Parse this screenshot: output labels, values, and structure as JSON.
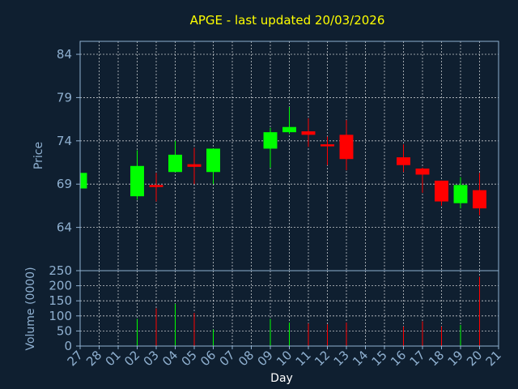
{
  "chart_data": {
    "type": "candlestick",
    "title": "APGE - last updated 20/03/2026",
    "xlabel": "Day",
    "price_panel": {
      "ylabel": "Price",
      "ylim": [
        59,
        85.5
      ],
      "yticks": [
        64,
        69,
        74,
        79,
        84
      ]
    },
    "volume_panel": {
      "ylabel": "Volume (0000)",
      "ylim": [
        0,
        250
      ],
      "yticks": [
        0,
        50,
        100,
        150,
        200,
        250
      ]
    },
    "categories": [
      "27",
      "28",
      "01",
      "02",
      "03",
      "04",
      "05",
      "06",
      "07",
      "08",
      "09",
      "10",
      "11",
      "12",
      "13",
      "14",
      "15",
      "16",
      "17",
      "18",
      "19",
      "20",
      "21"
    ],
    "candles": [
      {
        "day": "27",
        "open": 68.5,
        "close": 70.3,
        "high": 70.3,
        "low": 68.5,
        "volume": 0
      },
      {
        "day": "02",
        "open": 67.6,
        "close": 71.1,
        "high": 72.9,
        "low": 67.2,
        "volume": 90
      },
      {
        "day": "03",
        "open": 68.9,
        "close": 68.7,
        "high": 70.3,
        "low": 67.0,
        "volume": 125
      },
      {
        "day": "04",
        "open": 70.4,
        "close": 72.4,
        "high": 74.0,
        "low": 70.4,
        "volume": 140
      },
      {
        "day": "05",
        "open": 71.3,
        "close": 71.0,
        "high": 73.2,
        "low": 69.0,
        "volume": 110
      },
      {
        "day": "06",
        "open": 70.4,
        "close": 73.1,
        "high": 73.1,
        "low": 69.0,
        "volume": 55
      },
      {
        "day": "09",
        "open": 73.1,
        "close": 75.0,
        "high": 75.5,
        "low": 70.9,
        "volume": 90
      },
      {
        "day": "10",
        "open": 75.0,
        "close": 75.6,
        "high": 77.9,
        "low": 74.8,
        "volume": 78
      },
      {
        "day": "11",
        "open": 75.1,
        "close": 74.7,
        "high": 76.6,
        "low": 73.3,
        "volume": 75
      },
      {
        "day": "12",
        "open": 73.6,
        "close": 73.4,
        "high": 74.5,
        "low": 71.2,
        "volume": 72
      },
      {
        "day": "13",
        "open": 74.7,
        "close": 71.9,
        "high": 76.4,
        "low": 70.6,
        "volume": 78
      },
      {
        "day": "16",
        "open": 72.1,
        "close": 71.2,
        "high": 73.6,
        "low": 70.4,
        "volume": 65
      },
      {
        "day": "17",
        "open": 70.8,
        "close": 70.1,
        "high": 70.9,
        "low": 68.0,
        "volume": 82
      },
      {
        "day": "18",
        "open": 69.4,
        "close": 67.0,
        "high": 69.4,
        "low": 66.5,
        "volume": 65
      },
      {
        "day": "19",
        "open": 66.8,
        "close": 68.9,
        "high": 69.8,
        "low": 66.2,
        "volume": 70
      },
      {
        "day": "20",
        "open": 68.3,
        "close": 66.2,
        "high": 70.3,
        "low": 65.4,
        "volume": 230
      }
    ],
    "colors": {
      "up": "#00ff00",
      "down": "#ff0000",
      "background": "#0f1f30",
      "title": "#ffff00",
      "axis_text": "#8fb0d0",
      "xlabel_text": "#ffffff",
      "grid": "#ffffff"
    },
    "grid": true
  }
}
